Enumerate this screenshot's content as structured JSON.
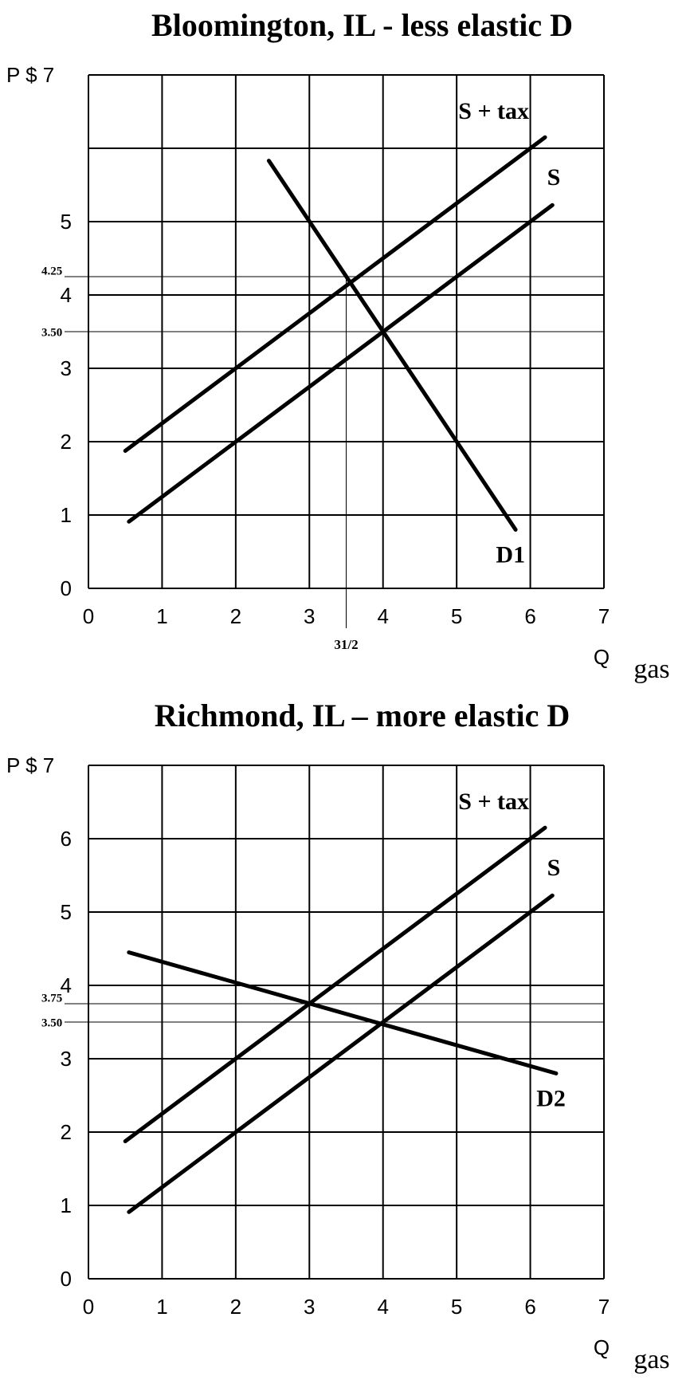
{
  "chart_data": [
    {
      "type": "line",
      "title": "Bloomington, IL - less elastic D",
      "xlim": [
        0,
        7
      ],
      "xticks": [
        0,
        1,
        2,
        3,
        4,
        5,
        6,
        7
      ],
      "ylim": [
        0,
        7
      ],
      "yticks": [
        0,
        1,
        2,
        3,
        4,
        5,
        {
          "value": 7,
          "label": "P $ 7"
        }
      ],
      "ygrid": [
        0,
        1,
        2,
        3,
        4,
        5,
        6,
        7
      ],
      "grid": true,
      "x_label": "Q",
      "x_label_sub": "gas",
      "hlines": [
        {
          "value": 4.25,
          "label": "4.25"
        },
        {
          "value": 3.5,
          "label": "3.50"
        }
      ],
      "vlines": [
        {
          "value": 3.5,
          "label": "31/2"
        }
      ],
      "series": [
        {
          "name": "S + tax",
          "color": "#000000",
          "x": [
            0.5,
            6.2
          ],
          "values": [
            1.875,
            6.15
          ]
        },
        {
          "name": "S",
          "color": "#000000",
          "x": [
            0.55,
            6.3
          ],
          "values": [
            0.91,
            5.225
          ]
        },
        {
          "name": "D1",
          "color": "#000000",
          "x": [
            2.45,
            5.8
          ],
          "values": [
            5.83,
            0.8
          ]
        }
      ]
    },
    {
      "type": "line",
      "title": "Richmond, IL – more elastic D",
      "xlim": [
        0,
        7
      ],
      "xticks": [
        0,
        1,
        2,
        3,
        4,
        5,
        6,
        7
      ],
      "ylim": [
        0,
        7
      ],
      "yticks": [
        0,
        1,
        2,
        3,
        4,
        5,
        6,
        {
          "value": 7,
          "label": "P $ 7"
        }
      ],
      "ygrid": [
        0,
        1,
        2,
        3,
        4,
        5,
        6,
        7
      ],
      "grid": true,
      "x_label": "Q",
      "x_label_sub": "gas",
      "hlines": [
        {
          "value": 3.75,
          "label": "3.75"
        },
        {
          "value": 3.5,
          "label": "3.50"
        }
      ],
      "vlines": [],
      "series": [
        {
          "name": "S + tax",
          "color": "#000000",
          "x": [
            0.5,
            6.2
          ],
          "values": [
            1.875,
            6.15
          ]
        },
        {
          "name": "S",
          "color": "#000000",
          "x": [
            0.55,
            6.3
          ],
          "values": [
            0.91,
            5.225
          ]
        },
        {
          "name": "D2",
          "color": "#000000",
          "x": [
            0.55,
            6.35
          ],
          "values": [
            4.45,
            2.8
          ]
        }
      ]
    }
  ]
}
